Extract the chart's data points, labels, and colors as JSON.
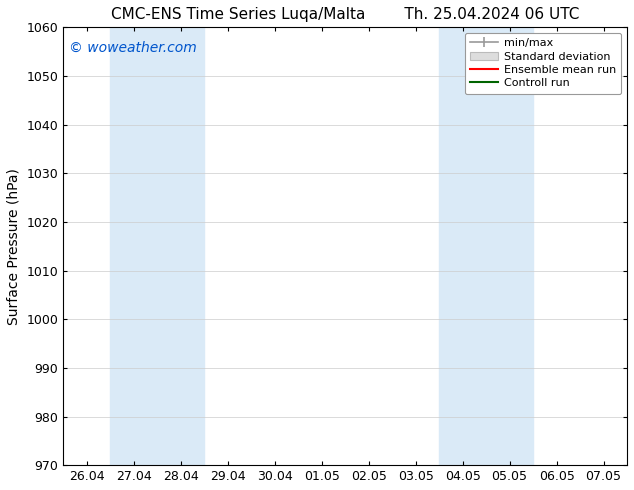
{
  "title_left": "CMC-ENS Time Series Luqa/Malta",
  "title_right": "Th. 25.04.2024 06 UTC",
  "ylabel": "Surface Pressure (hPa)",
  "ylim": [
    970,
    1060
  ],
  "yticks": [
    970,
    980,
    990,
    1000,
    1010,
    1020,
    1030,
    1040,
    1050,
    1060
  ],
  "x_tick_labels": [
    "26.04",
    "27.04",
    "28.04",
    "29.04",
    "30.04",
    "01.05",
    "02.05",
    "03.05",
    "04.05",
    "05.05",
    "06.05",
    "07.05"
  ],
  "x_tick_positions": [
    0,
    1,
    2,
    3,
    4,
    5,
    6,
    7,
    8,
    9,
    10,
    11
  ],
  "shaded_regions": [
    {
      "start": 1,
      "end": 3,
      "color": "#daeaf7"
    },
    {
      "start": 8,
      "end": 10,
      "color": "#daeaf7"
    }
  ],
  "watermark": "© woweather.com",
  "watermark_color": "#0055cc",
  "background_color": "#ffffff",
  "legend_items": [
    {
      "label": "min/max",
      "color": "#aaaaaa",
      "style": "errorbar"
    },
    {
      "label": "Standard deviation",
      "color": "#cccccc",
      "style": "band"
    },
    {
      "label": "Ensemble mean run",
      "color": "#ff0000",
      "style": "line"
    },
    {
      "label": "Controll run",
      "color": "#008000",
      "style": "line"
    }
  ],
  "title_fontsize": 11,
  "axis_fontsize": 10,
  "tick_fontsize": 9,
  "legend_fontsize": 8
}
